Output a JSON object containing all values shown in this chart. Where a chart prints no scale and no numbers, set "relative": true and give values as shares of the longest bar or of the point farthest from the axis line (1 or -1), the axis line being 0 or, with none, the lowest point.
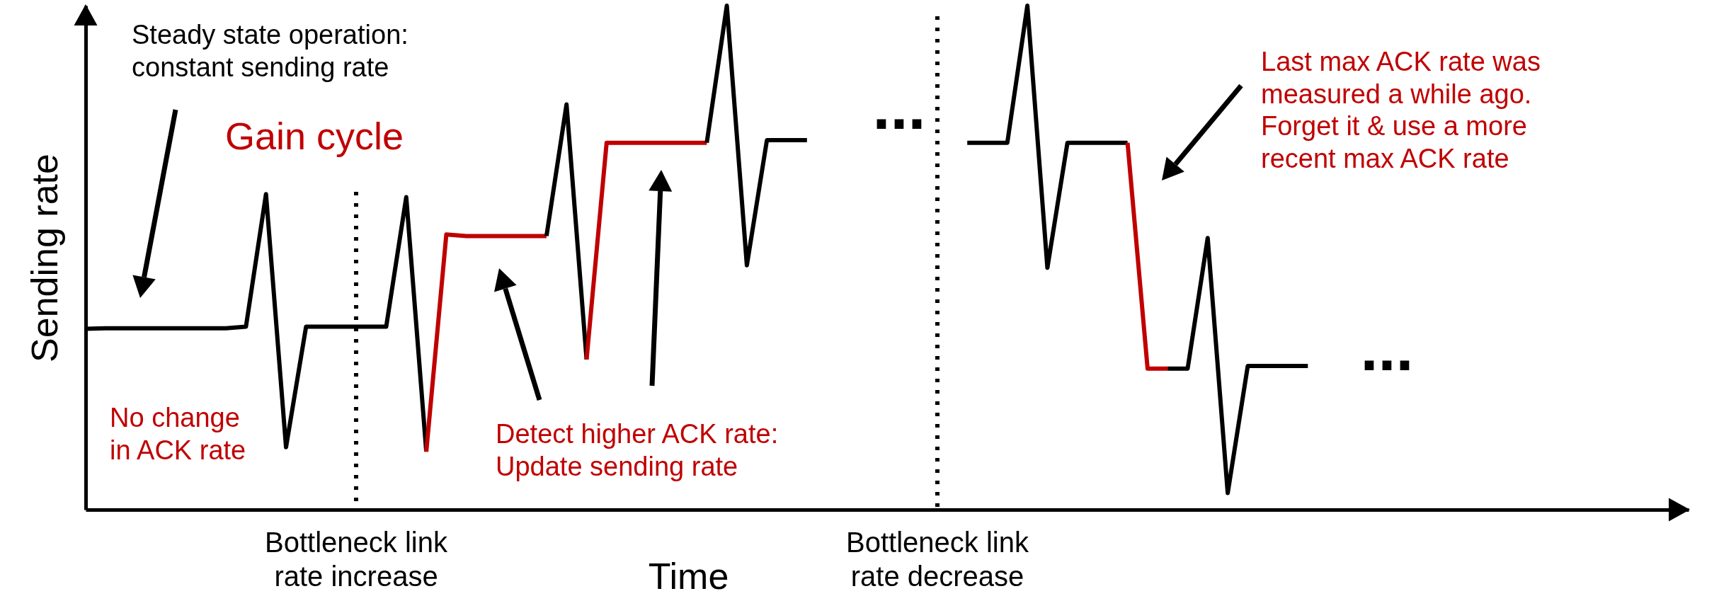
{
  "chart_data": {
    "type": "line",
    "xlabel": "Time",
    "ylabel": "Sending rate",
    "relative": true,
    "line_style": "solid",
    "marker": "none",
    "categories": [
      null,
      null,
      null,
      null,
      null,
      null,
      null,
      null,
      null,
      null,
      null,
      null,
      null,
      null,
      null,
      null,
      null,
      null,
      null,
      null,
      null,
      null,
      null,
      null,
      null,
      null,
      null,
      null,
      null,
      null,
      null,
      null,
      null,
      null,
      null,
      null,
      null,
      null,
      null,
      null,
      null,
      null,
      null,
      null,
      null,
      null,
      null,
      null,
      null,
      null,
      null,
      null,
      null,
      null,
      null,
      null,
      null,
      null,
      null,
      null,
      null,
      null,
      null,
      null,
      null,
      null,
      null,
      null,
      null,
      null,
      null,
      null,
      null,
      null,
      null,
      null,
      null,
      null,
      null,
      null,
      null
    ],
    "series": [
      {
        "color": "#000000",
        "values": [
          0.359,
          0.36,
          0.36,
          0.36,
          0.36,
          0.36,
          0.36,
          0.36,
          0.363,
          0.626,
          0.124,
          0.363,
          0.363,
          0.363,
          0.363,
          0.363,
          0.62,
          0.115,
          null,
          null,
          null,
          null,
          null,
          null,
          null,
          null,
          null,
          null,
          null,
          null,
          null,
          null,
          null,
          null,
          null,
          null,
          null,
          null,
          null,
          null,
          null,
          null,
          null,
          null,
          null,
          null,
          null,
          null,
          null,
          null,
          null,
          null,
          null,
          null,
          null,
          null,
          null,
          null,
          null,
          null,
          null,
          null,
          null,
          null,
          null,
          null,
          null,
          null,
          null,
          null,
          null,
          null,
          null,
          null,
          null,
          null,
          null,
          null,
          null,
          null,
          null
        ]
      },
      {
        "color": "#c00000",
        "values": [
          null,
          null,
          null,
          null,
          null,
          null,
          null,
          null,
          null,
          null,
          null,
          null,
          null,
          null,
          null,
          null,
          null,
          0.115,
          0.546,
          0.543,
          0.543,
          0.543,
          0.543,
          0.543,
          null,
          null,
          null,
          null,
          null,
          null,
          null,
          null,
          null,
          null,
          null,
          null,
          null,
          null,
          null,
          null,
          null,
          null,
          null,
          null,
          null,
          null,
          null,
          null,
          null,
          null,
          null,
          null,
          null,
          null,
          null,
          null,
          null,
          null,
          null,
          null,
          null,
          null,
          null,
          null,
          null,
          null,
          null,
          null,
          null,
          null,
          null,
          null,
          null,
          null,
          null,
          null,
          null,
          null,
          null,
          null,
          null
        ]
      },
      {
        "color": "#000000",
        "values": [
          null,
          null,
          null,
          null,
          null,
          null,
          null,
          null,
          null,
          null,
          null,
          null,
          null,
          null,
          null,
          null,
          null,
          null,
          null,
          null,
          null,
          null,
          null,
          0.543,
          0.804,
          0.298,
          null,
          null,
          null,
          null,
          null,
          null,
          null,
          null,
          null,
          null,
          null,
          null,
          null,
          null,
          null,
          null,
          null,
          null,
          null,
          null,
          null,
          null,
          null,
          null,
          null,
          null,
          null,
          null,
          null,
          null,
          null,
          null,
          null,
          null,
          null,
          null,
          null,
          null,
          null,
          null,
          null,
          null,
          null,
          null,
          null,
          null,
          null,
          null,
          null,
          null,
          null,
          null,
          null,
          null,
          null
        ]
      },
      {
        "color": "#c00000",
        "values": [
          null,
          null,
          null,
          null,
          null,
          null,
          null,
          null,
          null,
          null,
          null,
          null,
          null,
          null,
          null,
          null,
          null,
          null,
          null,
          null,
          null,
          null,
          null,
          null,
          null,
          0.298,
          0.728,
          0.728,
          0.728,
          0.728,
          0.728,
          0.728,
          null,
          null,
          null,
          null,
          null,
          null,
          null,
          null,
          null,
          null,
          null,
          null,
          null,
          null,
          null,
          null,
          null,
          null,
          null,
          null,
          null,
          null,
          null,
          null,
          null,
          null,
          null,
          null,
          null,
          null,
          null,
          null,
          null,
          null,
          null,
          null,
          null,
          null,
          null,
          null,
          null,
          null,
          null,
          null,
          null,
          null,
          null,
          null,
          null
        ]
      },
      {
        "color": "#000000",
        "values": [
          null,
          null,
          null,
          null,
          null,
          null,
          null,
          null,
          null,
          null,
          null,
          null,
          null,
          null,
          null,
          null,
          null,
          null,
          null,
          null,
          null,
          null,
          null,
          null,
          null,
          null,
          null,
          null,
          null,
          null,
          null,
          0.728,
          1,
          0.485,
          0.733,
          0.733,
          0.733,
          null,
          null,
          null,
          null,
          null,
          null,
          null,
          null,
          null,
          null,
          null,
          null,
          null,
          null,
          null,
          null,
          null,
          null,
          null,
          null,
          null,
          null,
          null,
          null,
          null,
          null,
          null,
          null,
          null,
          null,
          null,
          null,
          null,
          null,
          null,
          null,
          null,
          null,
          null,
          null,
          null,
          null,
          null,
          null
        ]
      },
      {
        "color": "#000000",
        "values": [
          null,
          null,
          null,
          null,
          null,
          null,
          null,
          null,
          null,
          null,
          null,
          null,
          null,
          null,
          null,
          null,
          null,
          null,
          null,
          null,
          null,
          null,
          null,
          null,
          null,
          null,
          null,
          null,
          null,
          null,
          null,
          null,
          null,
          null,
          null,
          null,
          null,
          null,
          null,
          null,
          null,
          null,
          null,
          null,
          0.728,
          0.728,
          0.728,
          1,
          0.48,
          0.728,
          0.728,
          0.728,
          0.728,
          null,
          null,
          null,
          null,
          null,
          null,
          null,
          null,
          null,
          null,
          null,
          null,
          null,
          null,
          null,
          null,
          null,
          null,
          null,
          null,
          null,
          null,
          null,
          null,
          null,
          null,
          null,
          null
        ]
      },
      {
        "color": "#c00000",
        "values": [
          null,
          null,
          null,
          null,
          null,
          null,
          null,
          null,
          null,
          null,
          null,
          null,
          null,
          null,
          null,
          null,
          null,
          null,
          null,
          null,
          null,
          null,
          null,
          null,
          null,
          null,
          null,
          null,
          null,
          null,
          null,
          null,
          null,
          null,
          null,
          null,
          null,
          null,
          null,
          null,
          null,
          null,
          null,
          null,
          null,
          null,
          null,
          null,
          null,
          null,
          null,
          null,
          0.728,
          0.28,
          0.28,
          null,
          null,
          null,
          null,
          null,
          null,
          null,
          null,
          null,
          null,
          null,
          null,
          null,
          null,
          null,
          null,
          null,
          null,
          null,
          null,
          null,
          null,
          null,
          null,
          null,
          null
        ]
      },
      {
        "color": "#000000",
        "values": [
          null,
          null,
          null,
          null,
          null,
          null,
          null,
          null,
          null,
          null,
          null,
          null,
          null,
          null,
          null,
          null,
          null,
          null,
          null,
          null,
          null,
          null,
          null,
          null,
          null,
          null,
          null,
          null,
          null,
          null,
          null,
          null,
          null,
          null,
          null,
          null,
          null,
          null,
          null,
          null,
          null,
          null,
          null,
          null,
          null,
          null,
          null,
          null,
          null,
          null,
          null,
          null,
          null,
          null,
          0.28,
          0.28,
          0.539,
          0.033,
          0.285,
          0.285,
          0.285,
          0.285,
          null,
          null,
          null,
          null,
          null,
          null,
          null,
          null,
          null,
          null,
          null,
          null,
          null,
          null,
          null,
          null,
          null,
          null,
          null
        ]
      }
    ],
    "annotations": [
      "Bottleneck link\nrate increase",
      "Bottleneck link\nrate decrease",
      "Steady state operation:\nconstant sending rate",
      "Gain cycle",
      "No change\nin ACK rate",
      "Detect higher ACK rate:\nUpdate sending rate",
      "Last max ACK rate was\nmeasured a while ago.\nForget it & use a more\nrecent max ACK rate",
      "...",
      "..."
    ]
  }
}
